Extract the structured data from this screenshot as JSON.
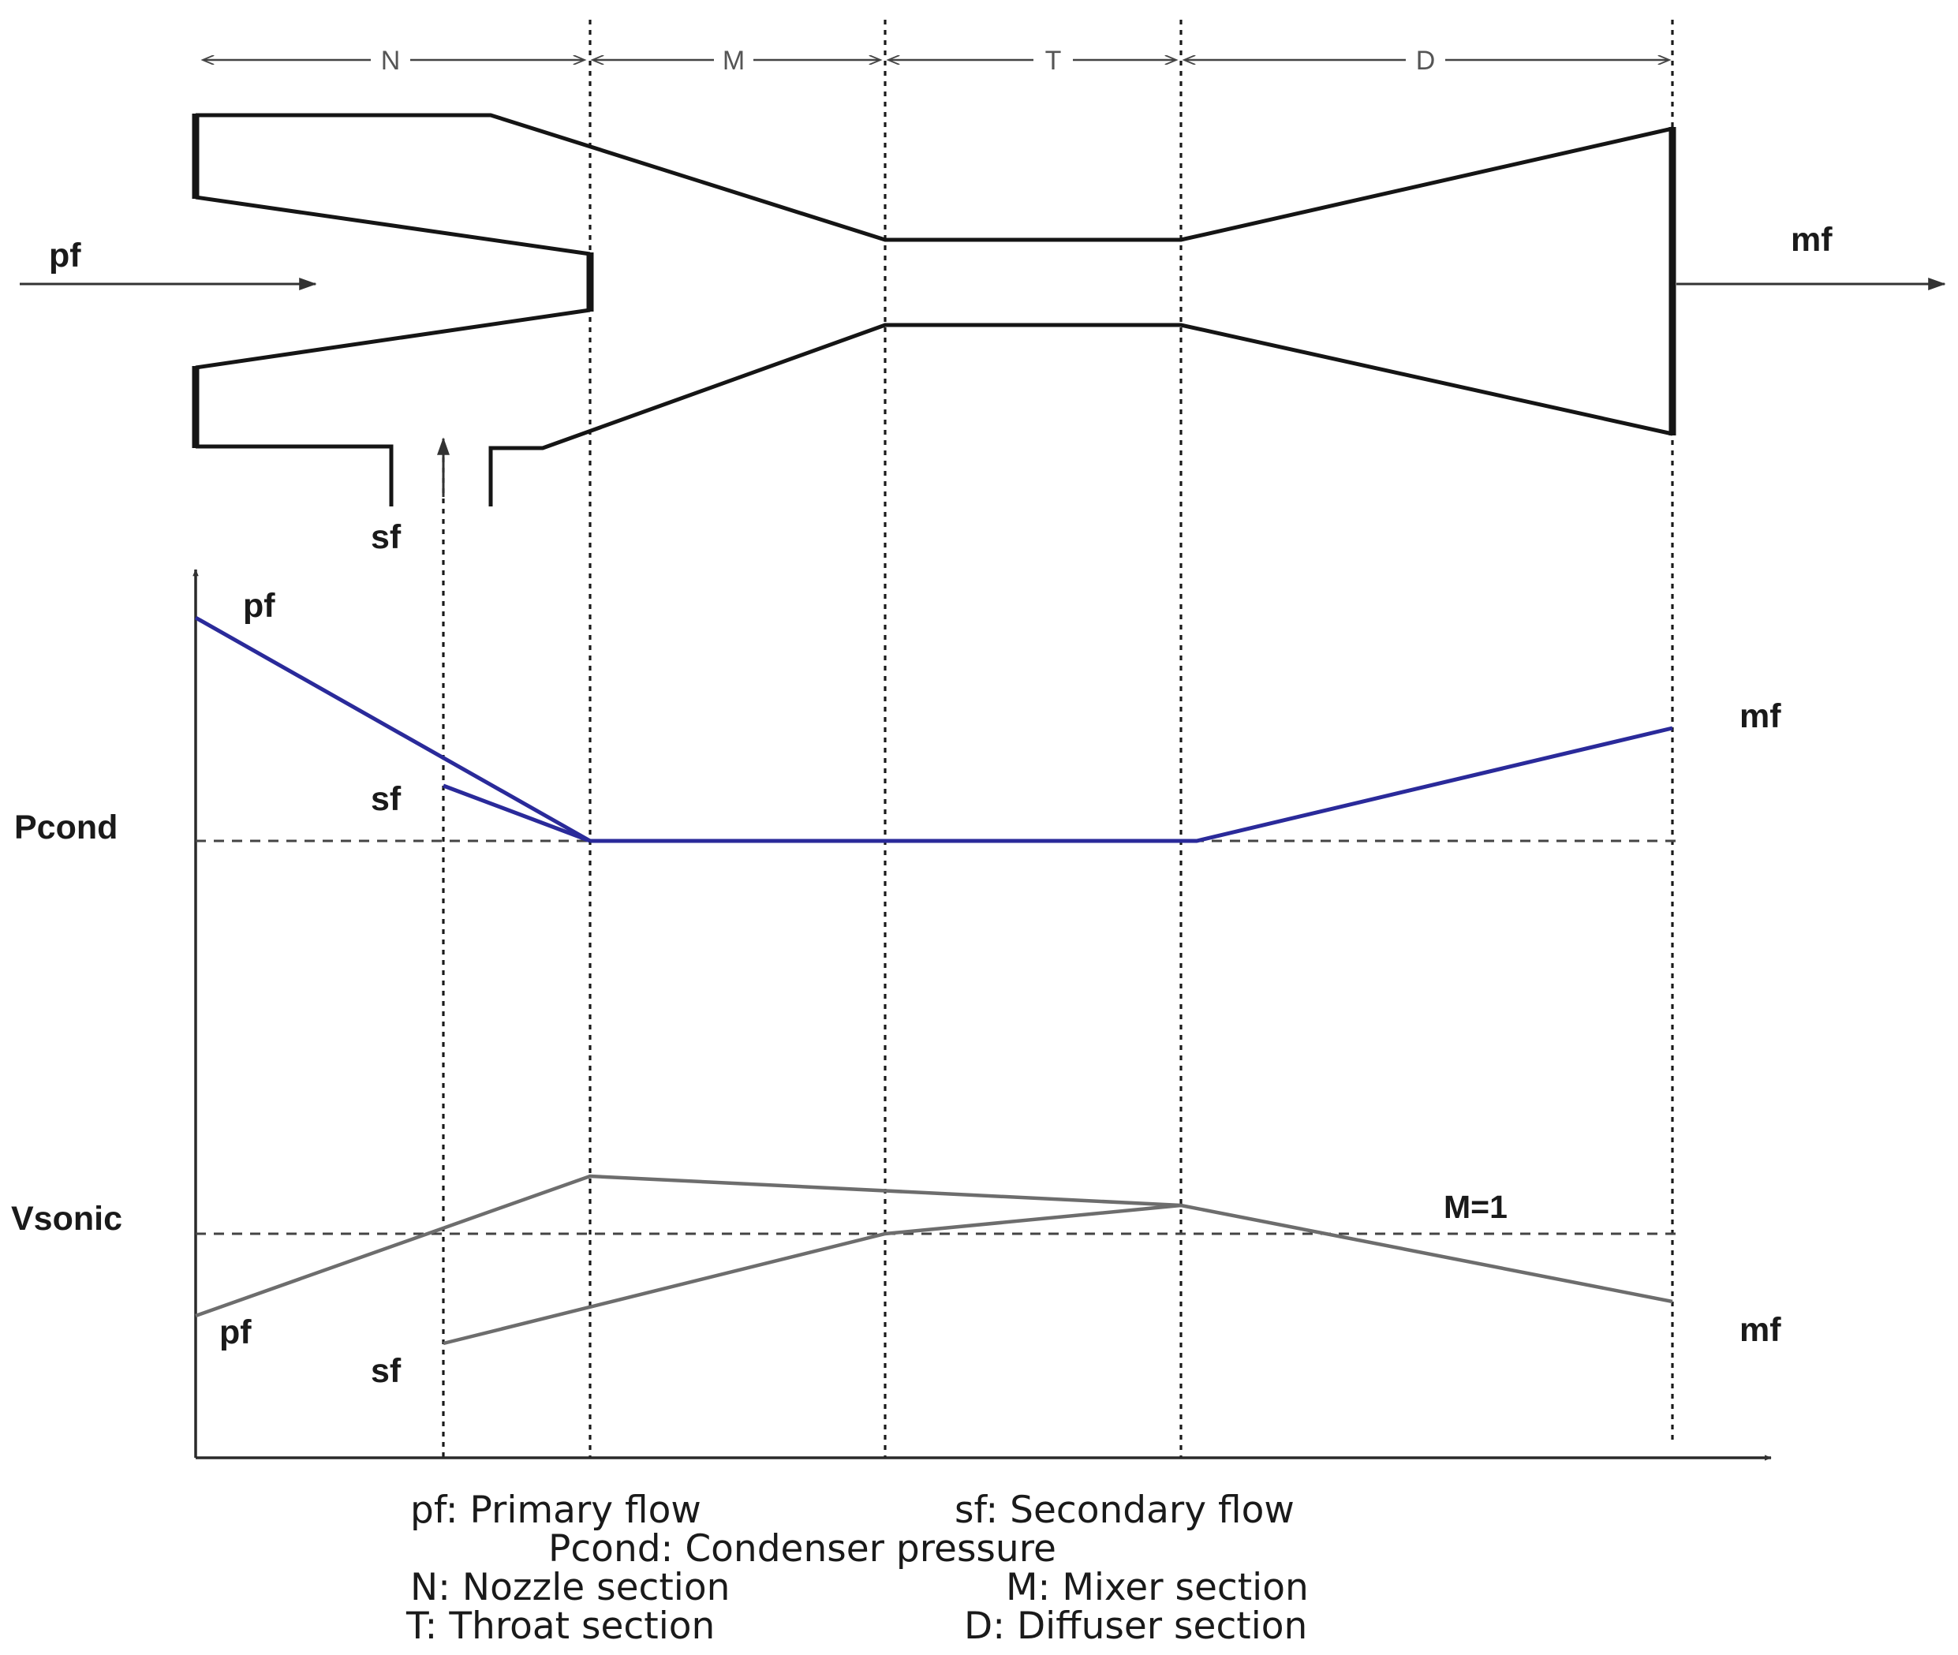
{
  "sections": {
    "nozzle": "N",
    "mixer": "M",
    "throat": "T",
    "diffuser": "D"
  },
  "flows": {
    "primary": "pf",
    "secondary": "sf",
    "mixed": "mf"
  },
  "pressure_plot": {
    "level_label": "Pcond",
    "labels": {
      "primary": "pf",
      "secondary": "sf",
      "mixed": "mf"
    }
  },
  "velocity_plot": {
    "level_label": "Vsonic",
    "mach_label": "M=1",
    "labels": {
      "primary": "pf",
      "secondary": "sf",
      "mixed": "mf"
    }
  },
  "legend": {
    "line1_left": "pf: Primary flow",
    "line1_right": "sf: Secondary flow",
    "line2": "Pcond: Condenser pressure",
    "line3_left": "N: Nozzle section",
    "line3_right": "M: Mixer section",
    "line4_left": "T: Throat section",
    "line4_right": "D: Diffuser section"
  },
  "colors": {
    "body": "#151515",
    "pressure_curve": "#2a2a9a",
    "velocity_curve": "#6d6d6d",
    "dashed_reference": "#444444"
  }
}
